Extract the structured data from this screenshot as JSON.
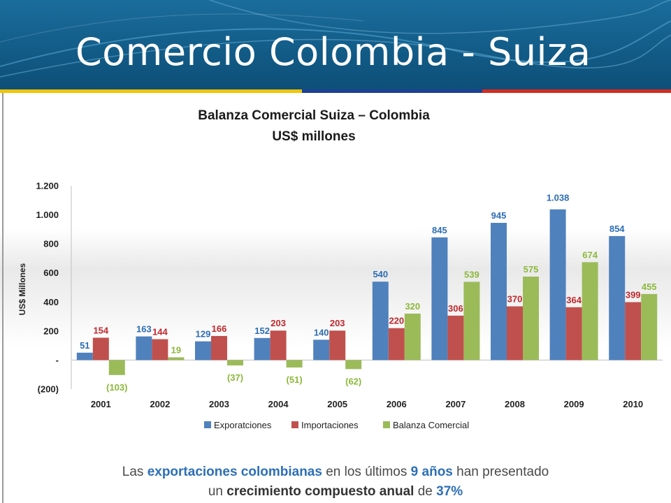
{
  "slide": {
    "title": "Comercio Colombia - Suiza",
    "flag_colors": [
      "#f1c400",
      "#1e3f96",
      "#d52b1e"
    ]
  },
  "chart_data": {
    "type": "bar",
    "title": "Balanza Comercial Suiza – Colombia",
    "subtitle": "US$ millones",
    "ylabel": "US$ Millones",
    "xlabel": "",
    "ylim": [
      -200,
      1200
    ],
    "yticks": [
      -200,
      0,
      200,
      400,
      600,
      800,
      1000,
      1200
    ],
    "ytick_labels": [
      "(200)",
      "-",
      "200",
      "400",
      "600",
      "800",
      "1.000",
      "1.200"
    ],
    "categories": [
      "2001",
      "2002",
      "2003",
      "2004",
      "2005",
      "2006",
      "2007",
      "2008",
      "2009",
      "2010"
    ],
    "grid": false,
    "legend_position": "bottom",
    "series": [
      {
        "name": "Exporatciones",
        "color": "#4f81bd",
        "label_color": "#2c6db3",
        "values": [
          51,
          163,
          129,
          152,
          140,
          540,
          845,
          945,
          1038,
          854
        ],
        "labels": [
          "51",
          "163",
          "129",
          "152",
          "140",
          "540",
          "845",
          "945",
          "1.038",
          "854"
        ]
      },
      {
        "name": "Importaciones",
        "color": "#c0504d",
        "label_color": "#c0282d",
        "values": [
          154,
          144,
          166,
          203,
          203,
          220,
          306,
          370,
          364,
          399
        ],
        "labels": [
          "154",
          "144",
          "166",
          "203",
          "203",
          "220",
          "306",
          "370",
          "364",
          "399"
        ]
      },
      {
        "name": "Balanza Comercial",
        "color": "#9bbb59",
        "label_color": "#8cb83a",
        "values": [
          -103,
          19,
          -37,
          -51,
          -62,
          320,
          539,
          575,
          674,
          455
        ],
        "labels": [
          "(103)",
          "19",
          "(37)",
          "(51)",
          "(62)",
          "320",
          "539",
          "575",
          "674",
          "455"
        ]
      }
    ]
  },
  "footnote": {
    "line1_a": "Las ",
    "line1_b": "exportaciones colombianas",
    "line1_c": " en los últimos ",
    "line1_d": "9 años",
    "line1_e": " han presentado",
    "line2_a": "un ",
    "line2_b": "crecimiento compuesto anual",
    "line2_c": " de ",
    "line2_d": "37%"
  }
}
